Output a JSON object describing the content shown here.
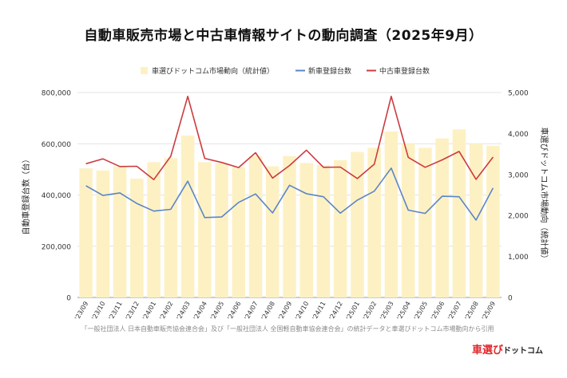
{
  "page": {
    "title": "自動車販売市場と中古車情報サイトの動向調査（2025年9月）",
    "note": "「一般社団法人 日本自動車販売協会連合会」及び「一般社団法人 全国軽自動車協会連合会」の統計データと車選びドットコム市場動向から引用",
    "logo_main": "車選び",
    "logo_sub": "ドットコム"
  },
  "chart_data": {
    "type": "bar",
    "categories": [
      "'23/09",
      "'23/10",
      "'23/11",
      "'23/12",
      "'24/01",
      "'24/02",
      "'24/03",
      "'24/04",
      "'24/05",
      "'24/06",
      "'24/07",
      "'24/08",
      "'24/09",
      "'24/10",
      "'24/11",
      "'24/12",
      "'25/01",
      "'25/02",
      "'25/03",
      "'25/04",
      "'25/05",
      "'25/06",
      "'25/07",
      "'25/08",
      "'25/09"
    ],
    "ylabel": "自動車登録台数（台）",
    "y2label": "車選びドットコム市場動向（統計値）",
    "ylim": [
      0,
      800000
    ],
    "y2lim": [
      0,
      5000
    ],
    "yticks": [
      "0",
      "200,000",
      "400,000",
      "600,000",
      "800,000"
    ],
    "y2ticks": [
      "0",
      "1,000",
      "2,000",
      "3,000",
      "4,000",
      "5,000"
    ],
    "grid": true,
    "legend_position": "top",
    "series": [
      {
        "name": "車選びドットコム市場動向（統計値）",
        "kind": "bar",
        "axis": "right",
        "color": "#fdf1c4",
        "values": [
          3150,
          3100,
          3200,
          2900,
          3300,
          3400,
          3950,
          3300,
          3280,
          3180,
          3450,
          3200,
          3450,
          3280,
          3230,
          3350,
          3550,
          3650,
          4050,
          3750,
          3650,
          3880,
          4100,
          3750,
          3700
        ]
      },
      {
        "name": "新車登録台数",
        "kind": "line",
        "axis": "left",
        "color": "#5b85c7",
        "values": [
          436000,
          398000,
          408000,
          367000,
          337000,
          344000,
          454000,
          312000,
          314000,
          371000,
          404000,
          330000,
          438000,
          405000,
          393000,
          329000,
          380000,
          415000,
          505000,
          341000,
          328000,
          395000,
          393000,
          302000,
          427000
        ]
      },
      {
        "name": "中古車登録台数",
        "kind": "line",
        "axis": "left",
        "color": "#cc3b3f",
        "values": [
          522000,
          541000,
          511000,
          512000,
          460000,
          551000,
          785000,
          543000,
          527000,
          507000,
          565000,
          466000,
          515000,
          575000,
          508000,
          509000,
          464000,
          520000,
          785000,
          547000,
          508000,
          537000,
          570000,
          461000,
          548000
        ]
      }
    ]
  }
}
